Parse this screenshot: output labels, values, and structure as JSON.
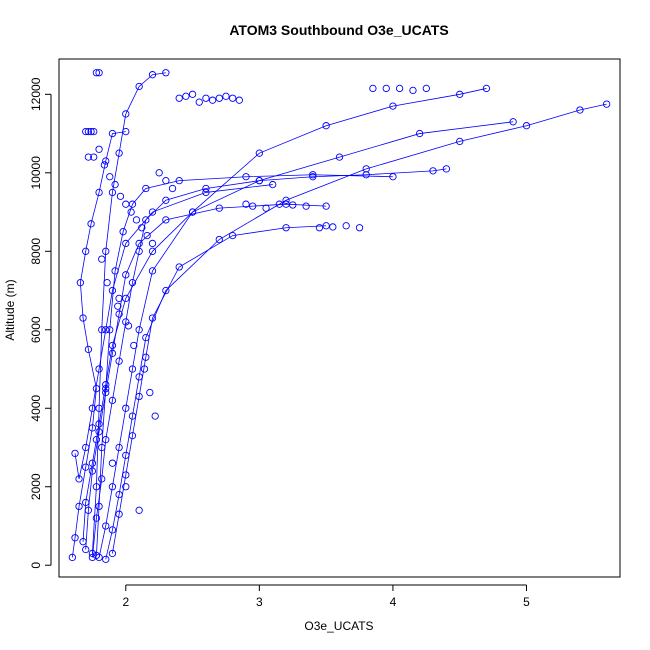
{
  "chart_data": {
    "type": "scatter",
    "title": "ATOM3 Southbound O3e_UCATS",
    "xlabel": "O3e_UCATS",
    "ylabel": "Altitude (m)",
    "xlim": [
      1.5,
      5.7
    ],
    "ylim": [
      -300,
      12900
    ],
    "xticks": [
      2,
      3,
      4,
      5
    ],
    "yticks": [
      0,
      2000,
      4000,
      6000,
      8000,
      10000,
      12000
    ],
    "color": "#0000ff",
    "style": "points connected by lines",
    "series": [
      {
        "x": [
          1.6,
          1.62,
          1.65,
          1.7,
          1.75,
          1.78,
          1.72,
          1.68,
          1.66,
          1.7,
          1.74,
          1.8,
          1.85,
          1.9,
          2.0
        ],
        "y": [
          200,
          700,
          1500,
          2500,
          3500,
          4500,
          5500,
          6300,
          7200,
          8000,
          8700,
          9500,
          10300,
          11000,
          11050
        ]
      },
      {
        "x": [
          1.75,
          1.78,
          1.82,
          1.85,
          1.9,
          1.95,
          2.0,
          2.05,
          2.1,
          2.15,
          2.3,
          2.6,
          3.0,
          3.4,
          3.8,
          4.3,
          4.4
        ],
        "y": [
          200,
          1200,
          2200,
          3200,
          4200,
          5200,
          6200,
          7200,
          8000,
          8800,
          9300,
          9600,
          9800,
          9900,
          9950,
          10050,
          10100
        ]
      },
      {
        "x": [
          1.8,
          1.85,
          1.9,
          1.95,
          2.0,
          2.05,
          2.1,
          2.2,
          2.5,
          3.0,
          3.5,
          4.0,
          4.5,
          4.7
        ],
        "y": [
          200,
          1000,
          2000,
          3000,
          4000,
          5000,
          6000,
          7500,
          9000,
          10500,
          11200,
          11700,
          12000,
          12150
        ]
      },
      {
        "x": [
          1.85,
          1.9,
          1.95,
          2.0,
          2.05,
          2.1,
          2.15,
          2.3,
          2.7,
          3.2,
          3.8,
          4.5,
          5.0,
          5.4,
          5.6
        ],
        "y": [
          150,
          900,
          1800,
          2800,
          3800,
          4800,
          5800,
          7000,
          8300,
          9300,
          10100,
          10800,
          11200,
          11600,
          11750
        ]
      },
      {
        "x": [
          1.9,
          1.95,
          2.0,
          2.05,
          2.1,
          2.15,
          2.2,
          2.4,
          2.8,
          3.2,
          3.5
        ],
        "y": [
          300,
          1300,
          2300,
          3300,
          4300,
          5300,
          6300,
          7600,
          8400,
          8600,
          8650
        ]
      },
      {
        "x": [
          1.7,
          1.72,
          1.75,
          1.8,
          1.85,
          1.9,
          1.95,
          2.0,
          2.1,
          2.3,
          2.7,
          3.2,
          3.5
        ],
        "y": [
          400,
          1400,
          2400,
          3400,
          4400,
          5400,
          6400,
          7400,
          8200,
          8800,
          9100,
          9200,
          9150
        ]
      },
      {
        "x": [
          1.68,
          1.7,
          1.75,
          1.8,
          1.85,
          1.9,
          2.0,
          2.2,
          2.5,
          3.0,
          3.6,
          4.2,
          4.9
        ],
        "y": [
          600,
          1600,
          2600,
          3600,
          4600,
          5600,
          6800,
          8000,
          9000,
          9800,
          10400,
          11000,
          11300
        ]
      },
      {
        "x": [
          1.75,
          1.78,
          1.8,
          1.82,
          1.85,
          1.9,
          1.95,
          2.0,
          2.1,
          2.2,
          2.3
        ],
        "y": [
          300,
          2000,
          4000,
          6000,
          8000,
          9500,
          10500,
          11500,
          12200,
          12500,
          12550
        ]
      },
      {
        "x": [
          1.78,
          1.8,
          1.82,
          1.85,
          1.88,
          1.92,
          1.98,
          2.05,
          2.15,
          2.4,
          2.9,
          3.4,
          4.0
        ],
        "y": [
          250,
          1500,
          3000,
          4500,
          6000,
          7500,
          8500,
          9200,
          9600,
          9800,
          9900,
          9950,
          9900
        ]
      },
      {
        "x": [
          1.62,
          1.65,
          1.7,
          1.75,
          1.8,
          1.85,
          1.9,
          2.0,
          2.2,
          2.6,
          3.1
        ],
        "y": [
          2850,
          2200,
          3000,
          4000,
          5000,
          6000,
          7000,
          8200,
          9000,
          9500,
          9700
        ]
      }
    ],
    "extra_points": {
      "x": [
        1.7,
        1.72,
        1.74,
        1.76,
        1.78,
        1.8,
        1.72,
        1.76,
        1.8,
        1.84,
        1.88,
        1.92,
        1.96,
        2.0,
        2.04,
        2.08,
        2.12,
        2.16,
        2.2,
        2.25,
        2.3,
        2.35,
        2.4,
        2.45,
        2.5,
        2.55,
        2.6,
        2.65,
        2.7,
        2.75,
        2.8,
        2.85,
        2.9,
        2.95,
        3.05,
        3.15,
        3.25,
        3.35,
        3.45,
        3.55,
        3.65,
        3.75,
        3.85,
        3.95,
        4.05,
        4.15,
        4.25,
        1.82,
        1.86,
        1.94,
        2.02,
        2.06,
        2.14,
        2.18,
        2.22,
        1.78,
        1.9,
        2.0,
        2.1,
        1.95
      ],
      "y": [
        11050,
        11050,
        11050,
        11050,
        12550,
        12550,
        10400,
        10400,
        10600,
        10200,
        9900,
        9700,
        9400,
        9200,
        9000,
        8800,
        8600,
        8400,
        8200,
        10000,
        9800,
        9600,
        11900,
        11950,
        12000,
        11800,
        11900,
        11850,
        11900,
        11950,
        11900,
        11850,
        9200,
        9150,
        9100,
        9200,
        9180,
        9150,
        8600,
        8620,
        8650,
        8600,
        12150,
        12150,
        12150,
        12100,
        12150,
        7800,
        7200,
        6600,
        6100,
        5600,
        5000,
        4400,
        3800,
        3200,
        2600,
        2000,
        1400,
        6800
      ]
    }
  }
}
